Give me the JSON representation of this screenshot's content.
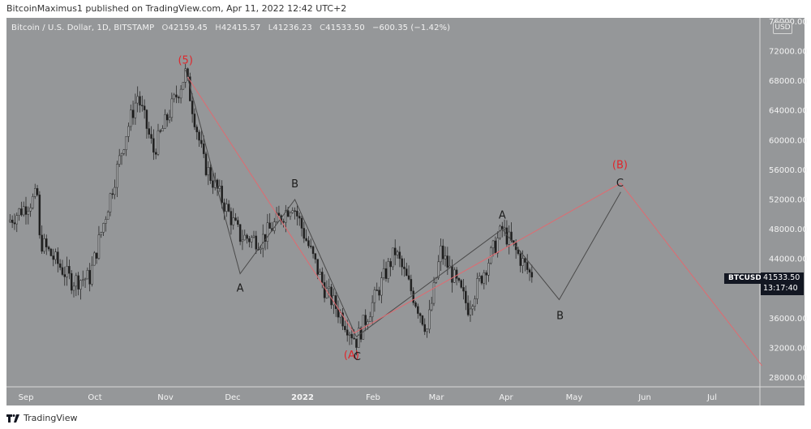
{
  "header": {
    "published_line": "BitcoinMaximus1 published on TradingView.com, Apr 11, 2022 12:42 UTC+2"
  },
  "legend": {
    "symbol": "Bitcoin / U.S. Dollar, 1D, BITSTAMP",
    "open_prefix": "O",
    "open": "42159.45",
    "high_prefix": "H",
    "high": "42415.57",
    "low_prefix": "L",
    "low": "41236.23",
    "close_prefix": "C",
    "close": "41533.50",
    "change": "−600.35 (−1.42%)"
  },
  "price_axis": {
    "currency_badge": "USD",
    "symbol_tag": "BTCUSD",
    "last_price": "41533.50",
    "countdown": "13:17:40"
  },
  "footer": {
    "brand": "TradingView"
  },
  "colors": {
    "background": "#959799",
    "candle_up": "#a9abad",
    "candle_down": "#1c1c1c",
    "wick": "#2a2a2a",
    "wave_black": "#4a4a4a",
    "wave_red": "#e06a70",
    "label_red": "#e0262b",
    "tag_bg": "#131722"
  },
  "chart_data": {
    "type": "candlestick",
    "title": "Bitcoin / U.S. Dollar, 1D, BITSTAMP",
    "xlabel": "",
    "ylabel": "USD",
    "x_ticks": [
      "Sep",
      "Oct",
      "Nov",
      "Dec",
      "2022",
      "Feb",
      "Mar",
      "Apr",
      "May",
      "Jun",
      "Jul"
    ],
    "y_ticks": [
      76000,
      72000,
      68000,
      64000,
      60000,
      56000,
      52000,
      48000,
      44000,
      40000,
      36000,
      32000,
      28000
    ],
    "y_tick_labels": [
      "76000.00",
      "72000.00",
      "68000.00",
      "64000.00",
      "60000.00",
      "56000.00",
      "52000.00",
      "48000.00",
      "44000.00",
      "40000.00",
      "36000.00",
      "32000.00",
      "28000.00"
    ],
    "ylim": [
      26000,
      78000
    ],
    "grid": false,
    "last_bar": {
      "open": 42159.45,
      "high": 42415.57,
      "low": 41236.23,
      "close": 41533.5,
      "change": -600.35,
      "change_pct": -1.42
    },
    "price_path_approx": [
      {
        "date": "2021-08-24",
        "price": 49000
      },
      {
        "date": "2021-09-06",
        "price": 52500
      },
      {
        "date": "2021-09-07",
        "price": 46500
      },
      {
        "date": "2021-09-21",
        "price": 41000
      },
      {
        "date": "2021-09-29",
        "price": 41500
      },
      {
        "date": "2021-10-15",
        "price": 61000
      },
      {
        "date": "2021-10-20",
        "price": 66000
      },
      {
        "date": "2021-10-27",
        "price": 58500
      },
      {
        "date": "2021-11-10",
        "price": 69000
      },
      {
        "date": "2021-11-18",
        "price": 57000
      },
      {
        "date": "2021-12-04",
        "price": 47000
      },
      {
        "date": "2021-12-13",
        "price": 46500
      },
      {
        "date": "2021-12-27",
        "price": 51500
      },
      {
        "date": "2022-01-10",
        "price": 40000
      },
      {
        "date": "2022-01-24",
        "price": 33000
      },
      {
        "date": "2022-02-10",
        "price": 45000
      },
      {
        "date": "2022-02-24",
        "price": 34500
      },
      {
        "date": "2022-03-02",
        "price": 45000
      },
      {
        "date": "2022-03-14",
        "price": 37500
      },
      {
        "date": "2022-03-29",
        "price": 48000
      },
      {
        "date": "2022-04-11",
        "price": 41533.5
      }
    ],
    "annotations": [
      {
        "label": "(5)",
        "color": "red",
        "date": "2021-11-10",
        "price": 69000
      },
      {
        "label": "A",
        "color": "black",
        "date": "2021-12-04",
        "price": 42000
      },
      {
        "label": "B",
        "color": "black",
        "date": "2021-12-28",
        "price": 52000
      },
      {
        "label": "(A)",
        "color": "red",
        "date": "2022-01-24",
        "price": 33000
      },
      {
        "label": "C",
        "color": "black",
        "date": "2022-01-24",
        "price": 33000
      },
      {
        "label": "A",
        "color": "black",
        "date": "2022-03-29",
        "price": 48000
      },
      {
        "label": "B",
        "color": "black",
        "date": "2022-04-23",
        "price": 38500
      },
      {
        "label": "(B)",
        "color": "red",
        "date": "2022-05-20",
        "price": 54000
      },
      {
        "label": "C",
        "color": "black",
        "date": "2022-05-20",
        "price": 53000
      }
    ],
    "wave_lines": {
      "black": [
        {
          "date": "2021-11-10",
          "price": 69500
        },
        {
          "date": "2021-12-04",
          "price": 42000
        },
        {
          "date": "2021-12-04",
          "price": 42000
        },
        {
          "date": "2021-12-28",
          "price": 52000
        },
        {
          "date": "2022-01-24",
          "price": 33500
        },
        {
          "date": "2022-03-29",
          "price": 48000
        },
        {
          "date": "2022-04-23",
          "price": 38500
        },
        {
          "date": "2022-05-20",
          "price": 53000
        }
      ],
      "red": [
        {
          "date": "2021-11-11",
          "price": 68500
        },
        {
          "date": "2022-01-23",
          "price": 34000
        },
        {
          "date": "2022-05-20",
          "price": 54200
        },
        {
          "date": "2022-07-21",
          "price": 29600
        }
      ]
    }
  }
}
